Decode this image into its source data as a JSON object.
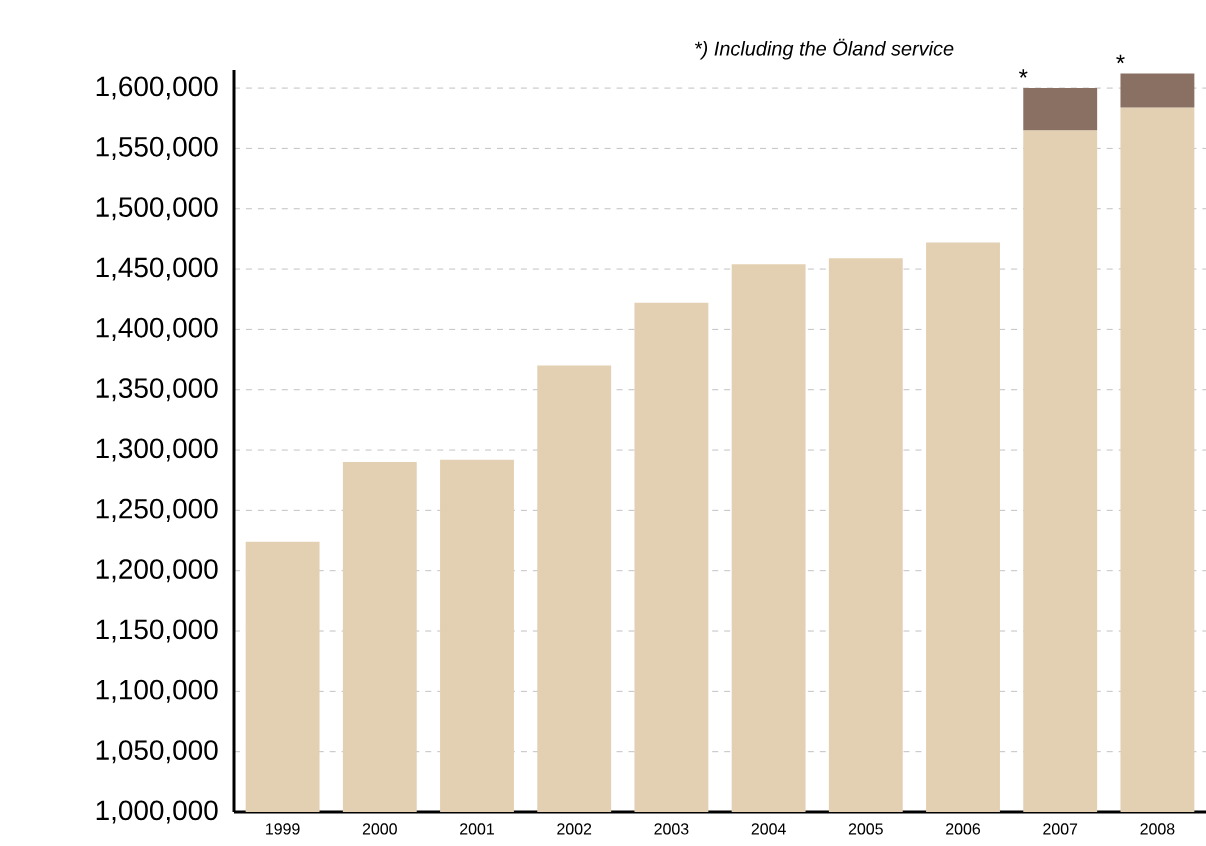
{
  "chart_data": {
    "type": "bar",
    "categories": [
      "1999",
      "2000",
      "2001",
      "2002",
      "2003",
      "2004",
      "2005",
      "2006",
      "2007",
      "2008"
    ],
    "series": [
      {
        "color": "#e3d0b2",
        "values": [
          1224000,
          1290000,
          1292000,
          1370000,
          1422000,
          1454000,
          1459000,
          1472000,
          1565000,
          1584000
        ]
      },
      {
        "color": "#8a7062",
        "base": [
          null,
          null,
          null,
          null,
          null,
          null,
          null,
          null,
          1565000,
          1584000
        ],
        "values": [
          null,
          null,
          null,
          null,
          null,
          null,
          null,
          null,
          35000,
          28000
        ]
      }
    ],
    "ylim": [
      1000000,
      1615000
    ],
    "yticks": [
      {
        "value": 1000000,
        "label": "1,000,000"
      },
      {
        "value": 1050000,
        "label": "1,050,000"
      },
      {
        "value": 1100000,
        "label": "1,100,000"
      },
      {
        "value": 1150000,
        "label": "1,150,000"
      },
      {
        "value": 1200000,
        "label": "1,200,000"
      },
      {
        "value": 1250000,
        "label": "1,250,000"
      },
      {
        "value": 1300000,
        "label": "1,300,000"
      },
      {
        "value": 1350000,
        "label": "1,350,000"
      },
      {
        "value": 1400000,
        "label": "1,400,000"
      },
      {
        "value": 1450000,
        "label": "1,450,000"
      },
      {
        "value": 1500000,
        "label": "1,500,000"
      },
      {
        "value": 1550000,
        "label": "1,550,000"
      },
      {
        "value": 1600000,
        "label": "1,600,000"
      }
    ],
    "grid": "y",
    "legend": false,
    "annotations": [
      "*) Including the Öland service",
      {
        "text": "*",
        "x": "2007",
        "y": 1600000
      },
      {
        "text": "*",
        "x": "2008",
        "y": 1612000
      }
    ]
  }
}
